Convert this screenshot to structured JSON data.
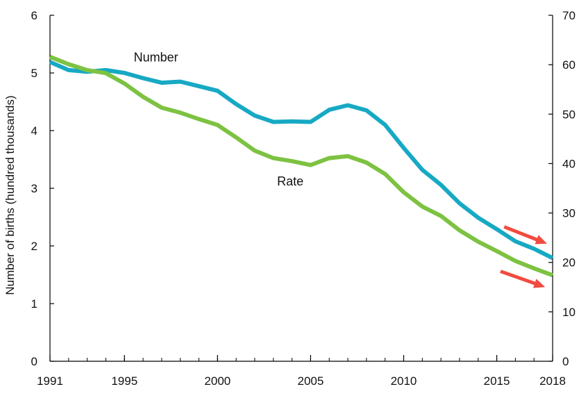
{
  "chart_data": {
    "type": "line",
    "title": "",
    "xlabel": "",
    "ylabel": "Number of births (hundred thousands)",
    "y2label": "",
    "xlim": [
      1991,
      2018
    ],
    "ylim": [
      0,
      6
    ],
    "y2lim": [
      0,
      70
    ],
    "x_ticks": [
      1991,
      1995,
      2000,
      2005,
      2010,
      2015,
      2018
    ],
    "y_ticks": [
      0,
      1,
      2,
      3,
      4,
      5,
      6
    ],
    "y2_ticks": [
      0,
      10,
      20,
      30,
      40,
      50,
      60,
      70
    ],
    "x": [
      1991,
      1992,
      1993,
      1994,
      1995,
      1996,
      1997,
      1998,
      1999,
      2000,
      2001,
      2002,
      2003,
      2004,
      2005,
      2006,
      2007,
      2008,
      2009,
      2010,
      2011,
      2012,
      2013,
      2014,
      2015,
      2016,
      2017,
      2018
    ],
    "series": [
      {
        "name": "Number",
        "axis": "left",
        "color": "#17A9C4",
        "values": [
          5.19,
          5.05,
          5.02,
          5.05,
          5.0,
          4.91,
          4.83,
          4.85,
          4.77,
          4.69,
          4.46,
          4.26,
          4.15,
          4.16,
          4.15,
          4.36,
          4.44,
          4.35,
          4.1,
          3.7,
          3.32,
          3.06,
          2.74,
          2.49,
          2.29,
          2.08,
          1.95,
          1.79
        ]
      },
      {
        "name": "Rate",
        "axis": "right",
        "color": "#7DC242",
        "values": [
          61.6,
          60.1,
          58.9,
          58.3,
          56.2,
          53.5,
          51.3,
          50.3,
          49.0,
          47.8,
          45.3,
          42.6,
          41.1,
          40.5,
          39.7,
          41.1,
          41.5,
          40.2,
          37.9,
          34.2,
          31.3,
          29.4,
          26.5,
          24.2,
          22.3,
          20.3,
          18.8,
          17.4
        ]
      }
    ],
    "annotations": [
      {
        "text": "Number",
        "x": 1995.5,
        "y": 5.2,
        "axis": "left"
      },
      {
        "text": "Rate",
        "x": 2003.2,
        "y": 3.05,
        "axis": "left"
      }
    ],
    "arrows": [
      {
        "color": "#F24B40",
        "from": {
          "x": 2015.4,
          "y": 27.2
        },
        "to": {
          "x": 2017.7,
          "y": 23.8
        },
        "axis": "right"
      },
      {
        "color": "#F24B40",
        "from": {
          "x": 2015.2,
          "y": 18.2
        },
        "to": {
          "x": 2017.6,
          "y": 15.0
        },
        "axis": "right"
      }
    ],
    "grid": false,
    "legend": "none"
  }
}
